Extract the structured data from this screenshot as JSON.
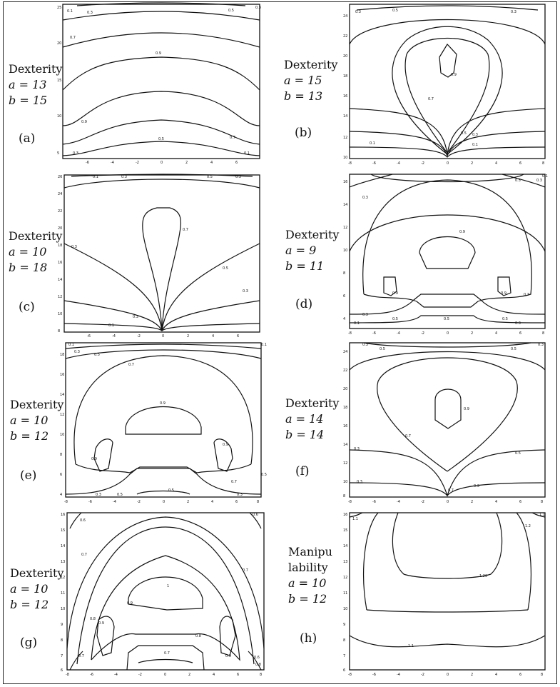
{
  "panels": [
    {
      "id": "a",
      "label": "(a)",
      "metric": "Dexterity",
      "a_line": "a = 13",
      "b_line": "b = 15",
      "yticks": [
        "25",
        "20",
        "15",
        "10",
        "5"
      ],
      "xticks": [
        "-6",
        "-4",
        "-2",
        "0",
        "2",
        "4",
        "6"
      ],
      "contour_labels": [
        "0.1",
        "0.3",
        "0.5",
        "0.7",
        "0.9",
        "0.5",
        "0.3",
        "0.1",
        "0.9",
        "0.7",
        "0.5",
        "0.3"
      ]
    },
    {
      "id": "b",
      "label": "(b)",
      "metric": "Dexterity",
      "a_line": "a = 15",
      "b_line": "b = 13",
      "yticks": [
        "24",
        "22",
        "20",
        "18",
        "16",
        "14",
        "12",
        "10"
      ],
      "xticks": [
        "-8",
        "-6",
        "-4",
        "-2",
        "0",
        "2",
        "4",
        "6",
        "8"
      ],
      "contour_labels": [
        "0.3",
        "0.3",
        "0.5",
        "0.9",
        "0.7",
        "0.5",
        "0.3",
        "0.1",
        "0.1"
      ]
    },
    {
      "id": "c",
      "label": "(c)",
      "metric": "Dexterity",
      "a_line": "a = 10",
      "b_line": "b = 18",
      "yticks": [
        "26",
        "24",
        "22",
        "20",
        "18",
        "16",
        "14",
        "12",
        "10",
        "8"
      ],
      "xticks": [
        "-6",
        "-4",
        "-2",
        "0",
        "2",
        "4",
        "6"
      ],
      "contour_labels": [
        "0.1",
        "0.3",
        "0.5",
        "0.3",
        "0.7",
        "0.5",
        "0.3",
        "0.1",
        "0.3",
        "0.1"
      ]
    },
    {
      "id": "d",
      "label": "(d)",
      "metric": "Dexterity",
      "a_line": "a = 9",
      "b_line": "b = 11",
      "yticks": [
        "16",
        "14",
        "12",
        "10",
        "8",
        "6",
        "4"
      ],
      "xticks": [
        "-8",
        "-6",
        "-4",
        "-2",
        "0",
        "2",
        "4",
        "6",
        "8"
      ],
      "contour_labels": [
        "0.1",
        "0.3",
        "0.5",
        "0.3",
        "0.9",
        "0.9",
        "0.9",
        "0.7",
        "0.5",
        "0.3",
        "0.1",
        "0.5",
        "0.3"
      ]
    },
    {
      "id": "e",
      "label": "(e)",
      "metric": "Dexterity",
      "a_line": "a = 10",
      "b_line": "b = 12",
      "yticks": [
        "18",
        "16",
        "14",
        "12",
        "10",
        "8",
        "6",
        "4"
      ],
      "xticks": [
        "-8",
        "-6",
        "-4",
        "-2",
        "0",
        "2",
        "4",
        "6",
        "8"
      ],
      "contour_labels": [
        "0.1",
        "0.3",
        "0.5",
        "0.7",
        "0.9",
        "0.9",
        "0.9",
        "0.7",
        "0.5",
        "0.3",
        "0.5",
        "0.3",
        "0.5",
        "0.1"
      ]
    },
    {
      "id": "f",
      "label": "(f)",
      "metric": "Dexterity",
      "a_line": "a = 14",
      "b_line": "b = 14",
      "yticks": [
        "24",
        "22",
        "20",
        "18",
        "16",
        "14",
        "12",
        "10",
        "8"
      ],
      "xticks": [
        "-8",
        "-6",
        "-4",
        "-2",
        "0",
        "2",
        "4",
        "6",
        "8"
      ],
      "contour_labels": [
        "0.3",
        "0.5",
        "0.5",
        "0.3",
        "0.7",
        "0.9",
        "0.5",
        "0.3",
        "0.7",
        "0.3"
      ]
    },
    {
      "id": "g",
      "label": "(g)",
      "metric": "Dexterity",
      "a_line": "a = 10",
      "b_line": "b = 12",
      "yticks": [
        "16",
        "15",
        "14",
        "13",
        "12",
        "11",
        "10",
        "9",
        "8",
        "7",
        "6"
      ],
      "xticks": [
        "-8",
        "-6",
        "-4",
        "-2",
        "0",
        "2",
        "4",
        "6",
        "8"
      ],
      "contour_labels": [
        "0.6",
        "0.7",
        "1",
        "0.9",
        "0.8",
        "0.9",
        "0.8",
        "0.7",
        "0.9",
        "0.8",
        "0.7",
        "0.6",
        "0.6",
        "0.7"
      ]
    },
    {
      "id": "h",
      "label": "(h)",
      "metric_line1": "Manipu",
      "metric_line2": "lability",
      "a_line": "a = 10",
      "b_line": "b = 12",
      "yticks": [
        "16",
        "15",
        "14",
        "13",
        "12",
        "11",
        "10",
        "9",
        "8",
        "7",
        "6"
      ],
      "xticks": [
        "-8",
        "-6",
        "-4",
        "-2",
        "0",
        "2",
        "4",
        "6",
        "8"
      ],
      "contour_labels": [
        "1.1",
        "1.1",
        "1.2",
        "1.20",
        "1.1"
      ]
    }
  ]
}
